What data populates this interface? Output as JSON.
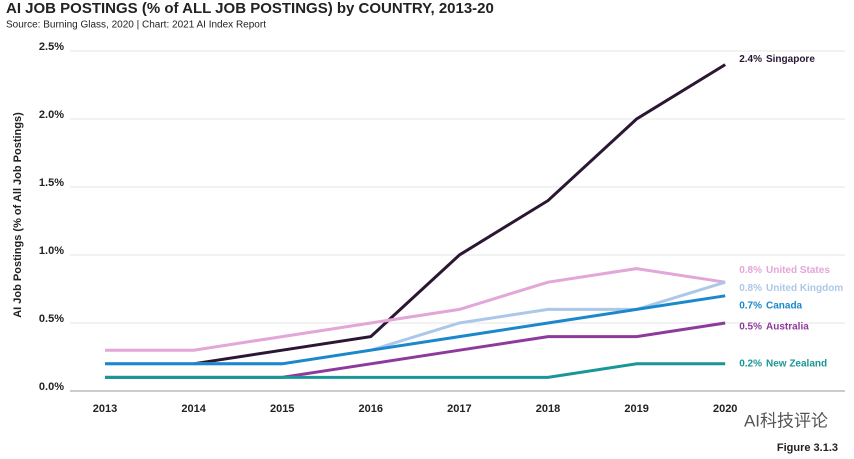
{
  "chart_data": {
    "type": "line",
    "title": "AI JOB POSTINGS (% of ALL JOB POSTINGS) by COUNTRY, 2013-20",
    "subtitle": "Source: Burning Glass, 2020 | Chart: 2021 AI Index Report",
    "y_label": "AI Job Postings (% of  All Job Postings)",
    "figure_label": "Figure 3.1.3",
    "watermark": "AI科技评论",
    "categories": [
      "2013",
      "2014",
      "2015",
      "2016",
      "2017",
      "2018",
      "2019",
      "2020"
    ],
    "series": [
      {
        "name": "Singapore",
        "color": "#2b1633",
        "values": [
          null,
          0.2,
          0.3,
          0.4,
          1.0,
          1.4,
          2.0,
          2.4
        ],
        "value_labels": [
          null,
          null,
          null,
          null,
          null,
          null,
          null,
          "2.4%"
        ]
      },
      {
        "name": "United States",
        "color": "#e3a6d8",
        "values": [
          0.3,
          0.3,
          0.4,
          0.5,
          0.6,
          0.8,
          0.9,
          0.8
        ],
        "value_labels": [
          null,
          null,
          null,
          null,
          null,
          null,
          null,
          "0.8%"
        ]
      },
      {
        "name": "United Kingdom",
        "color": "#abc8e8",
        "values": [
          0.2,
          0.2,
          0.2,
          0.3,
          0.5,
          0.6,
          0.6,
          0.8
        ],
        "value_labels": [
          null,
          null,
          null,
          null,
          null,
          null,
          null,
          "0.8%"
        ]
      },
      {
        "name": "Canada",
        "color": "#1b88cc",
        "values": [
          0.2,
          0.2,
          0.2,
          0.3,
          0.4,
          0.5,
          0.6,
          0.7
        ],
        "value_labels": [
          null,
          null,
          null,
          null,
          null,
          null,
          null,
          "0.7%"
        ]
      },
      {
        "name": "Australia",
        "color": "#8e3a9c",
        "values": [
          0.1,
          0.1,
          0.1,
          0.2,
          0.3,
          0.4,
          0.4,
          0.5
        ],
        "value_labels": [
          null,
          null,
          null,
          null,
          null,
          null,
          null,
          "0.5%"
        ]
      },
      {
        "name": "New Zealand",
        "color": "#1a9696",
        "values": [
          0.1,
          0.1,
          0.1,
          0.1,
          0.1,
          0.1,
          0.2,
          0.2
        ],
        "value_labels": [
          null,
          null,
          null,
          null,
          null,
          null,
          null,
          "0.2%"
        ]
      }
    ],
    "ylim": [
      0,
      2.5
    ],
    "yticks": [
      {
        "value": 0,
        "label": "0.0%"
      },
      {
        "value": 0.5,
        "label": "0.5%"
      },
      {
        "value": 1.0,
        "label": "1.0%"
      },
      {
        "value": 1.5,
        "label": "1.5%"
      },
      {
        "value": 2.0,
        "label": "2.0%"
      },
      {
        "value": 2.5,
        "label": "2.5%"
      }
    ],
    "grid": true
  }
}
